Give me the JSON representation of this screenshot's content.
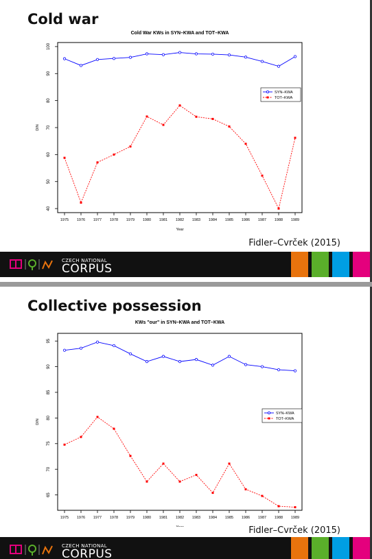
{
  "slides": [
    {
      "title": "Cold war",
      "credit": "Fidler–Cvrček (2015)",
      "logo_small": "CZECH NATIONAL",
      "logo_big": "CORPUS"
    },
    {
      "title": "Collective possession",
      "credit": "Fidler–Cvrček (2015)",
      "logo_small": "CZECH NATIONAL",
      "logo_big": "CORPUS"
    }
  ],
  "colors": {
    "syn": "#0000ff",
    "tot": "#ff0000",
    "footer": "#111111",
    "block_orange": "#e8730d",
    "block_green": "#5aaf2a",
    "block_blue": "#009ee3",
    "block_pink": "#e4007d"
  },
  "icons": [
    "book-icon",
    "pin-icon",
    "wave-icon"
  ],
  "chart_data": [
    {
      "type": "line",
      "title": "Cold War KWs in SYN–KWA and TOT–KWA",
      "xlabel": "Year",
      "ylabel": "DIN",
      "x": [
        "1975",
        "1976",
        "1977",
        "1978",
        "1979",
        "1980",
        "1981",
        "1982",
        "1983",
        "1984",
        "1985",
        "1986",
        "1987",
        "1988",
        "1989"
      ],
      "yticks": [
        40,
        50,
        60,
        70,
        80,
        90,
        100
      ],
      "ylim": [
        38.5,
        101.5
      ],
      "legend_position": "right",
      "grid": false,
      "series": [
        {
          "name": "SYN–KWA",
          "style": "solid",
          "marker": "open-circle",
          "values": [
            95.5,
            93.0,
            95.2,
            95.6,
            96.0,
            97.3,
            97.0,
            97.8,
            97.3,
            97.2,
            96.9,
            96.1,
            94.5,
            92.7,
            96.3
          ]
        },
        {
          "name": "TOT–KWA",
          "style": "dotted",
          "marker": "filled-square",
          "values": [
            58.8,
            42.2,
            57.1,
            60.0,
            63.0,
            74.1,
            71.0,
            78.2,
            74.0,
            73.2,
            70.4,
            64.0,
            52.2,
            40.0,
            66.2
          ]
        }
      ]
    },
    {
      "type": "line",
      "title": "KWs \"our\" in SYN–KWA and TOT–KWA",
      "xlabel": "Year",
      "ylabel": "DIN",
      "x": [
        "1975",
        "1976",
        "1977",
        "1978",
        "1979",
        "1980",
        "1981",
        "1982",
        "1983",
        "1984",
        "1985",
        "1986",
        "1987",
        "1988",
        "1989"
      ],
      "yticks": [
        65,
        70,
        75,
        80,
        85,
        90,
        95
      ],
      "ylim": [
        62,
        96.5
      ],
      "legend_position": "right",
      "grid": false,
      "series": [
        {
          "name": "SYN–KWA",
          "style": "solid",
          "marker": "open-circle",
          "values": [
            93.2,
            93.6,
            94.8,
            94.1,
            92.5,
            91.0,
            92.0,
            91.0,
            91.4,
            90.3,
            92.0,
            90.4,
            90.0,
            89.4,
            89.2
          ]
        },
        {
          "name": "TOT–KWA",
          "style": "dotted",
          "marker": "filled-square",
          "values": [
            74.8,
            76.3,
            80.2,
            77.9,
            72.6,
            67.6,
            71.1,
            67.6,
            68.9,
            65.4,
            71.1,
            66.1,
            64.8,
            62.8,
            62.6
          ]
        }
      ]
    }
  ]
}
